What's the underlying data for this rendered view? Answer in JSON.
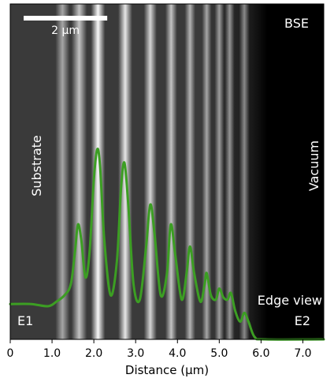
{
  "scalebar": {
    "label": "2 µm",
    "length_um": 2.0
  },
  "labels": {
    "mode": "BSE",
    "left_region": "Substrate",
    "right_region": "Vacuum",
    "edge": "Edge view",
    "e1": "E1",
    "e2": "E2"
  },
  "axis": {
    "xlabel": "Distance (µm)",
    "xrange_um": [
      0.0,
      7.5
    ],
    "ticks": [
      "0",
      "1.0",
      "2.0",
      "3.0",
      "4.0",
      "5.0",
      "6.0",
      "7.0"
    ],
    "tick_values": [
      0,
      1,
      2,
      3,
      4,
      5,
      6,
      7
    ]
  },
  "colors": {
    "profile": "#3c9e23",
    "frame": "#000000",
    "text": "#ffffff"
  },
  "bands": [
    {
      "x": 1.25,
      "w": 0.12,
      "g": 0.55
    },
    {
      "x": 1.65,
      "w": 0.13,
      "g": 0.7
    },
    {
      "x": 2.1,
      "w": 0.12,
      "g": 0.97
    },
    {
      "x": 2.75,
      "w": 0.12,
      "g": 0.88
    },
    {
      "x": 3.35,
      "w": 0.11,
      "g": 0.78
    },
    {
      "x": 3.85,
      "w": 0.1,
      "g": 0.7
    },
    {
      "x": 4.3,
      "w": 0.09,
      "g": 0.62
    },
    {
      "x": 4.7,
      "w": 0.08,
      "g": 0.55
    },
    {
      "x": 5.0,
      "w": 0.08,
      "g": 0.5
    },
    {
      "x": 5.25,
      "w": 0.08,
      "g": 0.46
    },
    {
      "x": 5.6,
      "w": 0.09,
      "g": 0.4
    }
  ],
  "profile": [
    [
      0.0,
      0.16
    ],
    [
      0.5,
      0.16
    ],
    [
      0.9,
      0.15
    ],
    [
      1.1,
      0.17
    ],
    [
      1.3,
      0.2
    ],
    [
      1.45,
      0.25
    ],
    [
      1.55,
      0.4
    ],
    [
      1.62,
      0.52
    ],
    [
      1.7,
      0.45
    ],
    [
      1.8,
      0.28
    ],
    [
      1.9,
      0.4
    ],
    [
      2.0,
      0.72
    ],
    [
      2.08,
      0.86
    ],
    [
      2.15,
      0.78
    ],
    [
      2.25,
      0.45
    ],
    [
      2.4,
      0.2
    ],
    [
      2.55,
      0.35
    ],
    [
      2.65,
      0.68
    ],
    [
      2.73,
      0.8
    ],
    [
      2.82,
      0.62
    ],
    [
      2.95,
      0.25
    ],
    [
      3.1,
      0.18
    ],
    [
      3.25,
      0.42
    ],
    [
      3.35,
      0.61
    ],
    [
      3.45,
      0.48
    ],
    [
      3.6,
      0.2
    ],
    [
      3.75,
      0.3
    ],
    [
      3.84,
      0.52
    ],
    [
      3.95,
      0.38
    ],
    [
      4.1,
      0.18
    ],
    [
      4.22,
      0.3
    ],
    [
      4.3,
      0.42
    ],
    [
      4.4,
      0.3
    ],
    [
      4.55,
      0.17
    ],
    [
      4.65,
      0.25
    ],
    [
      4.7,
      0.3
    ],
    [
      4.8,
      0.2
    ],
    [
      4.92,
      0.18
    ],
    [
      5.0,
      0.23
    ],
    [
      5.1,
      0.19
    ],
    [
      5.2,
      0.18
    ],
    [
      5.28,
      0.21
    ],
    [
      5.38,
      0.13
    ],
    [
      5.5,
      0.08
    ],
    [
      5.6,
      0.12
    ],
    [
      5.7,
      0.08
    ],
    [
      5.85,
      0.01
    ],
    [
      6.1,
      0.0
    ],
    [
      7.5,
      0.0
    ]
  ]
}
